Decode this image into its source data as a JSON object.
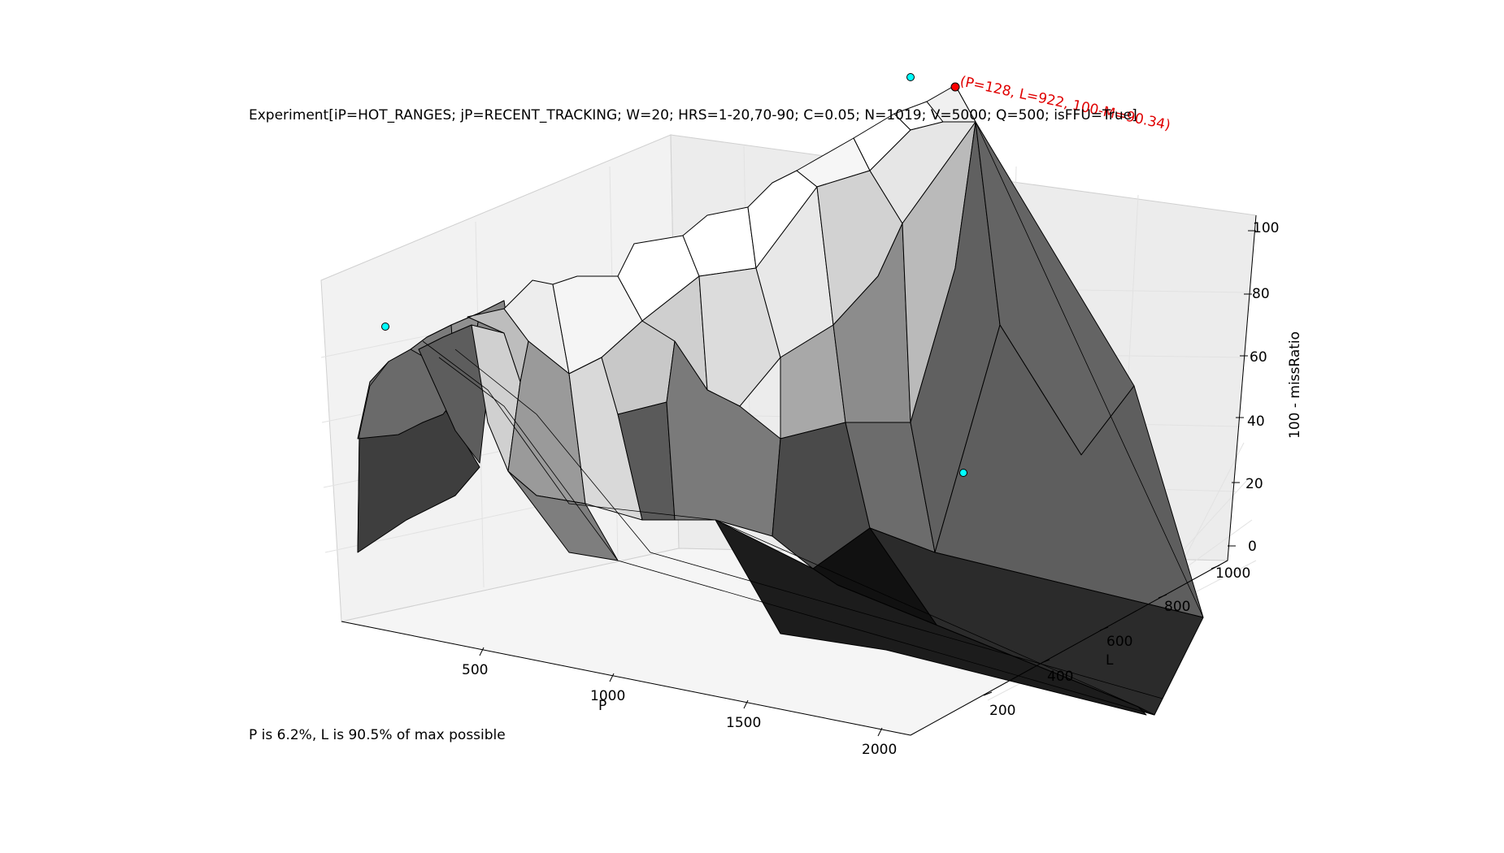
{
  "chart_data": {
    "type": "surface3d",
    "title": "Experiment[iP=HOT_RANGES; jP=RECENT_TRACKING; W=20; HRS=1-20,70-90; C=0.05; N=1019; V=5000; Q=500; isFFU=True]",
    "xlabel": "P",
    "ylabel": "L",
    "zlabel": "100 - missRatio",
    "xlim": [
      1,
      2048
    ],
    "ylim": [
      1,
      1019
    ],
    "zlim": [
      0,
      100
    ],
    "x_ticks": [
      "500",
      "1000",
      "1500",
      "2000"
    ],
    "y_ticks": [
      "200",
      "400",
      "600",
      "800",
      "1000"
    ],
    "z_ticks": [
      "0",
      "20",
      "40",
      "60",
      "80",
      "100"
    ],
    "max_point": {
      "P": 128,
      "L": 922,
      "value": 90.34
    },
    "max_label": "(P=128, L=922, 100-M=90.34)",
    "highlight_color": "#ff0000",
    "marker_color": "#00ffff",
    "surface_ridge": [
      {
        "P": 1,
        "L": 60,
        "value": 2
      },
      {
        "P": 30,
        "L": 300,
        "value": 45
      },
      {
        "P": 64,
        "L": 600,
        "value": 75
      },
      {
        "P": 100,
        "L": 850,
        "value": 87
      },
      {
        "P": 128,
        "L": 922,
        "value": 90.34
      },
      {
        "P": 300,
        "L": 1019,
        "value": 88
      },
      {
        "P": 1000,
        "L": 1019,
        "value": 60
      },
      {
        "P": 2048,
        "L": 1019,
        "value": 5
      }
    ]
  },
  "footnote": "P is 6.2%, L is 90.5% of max possible"
}
